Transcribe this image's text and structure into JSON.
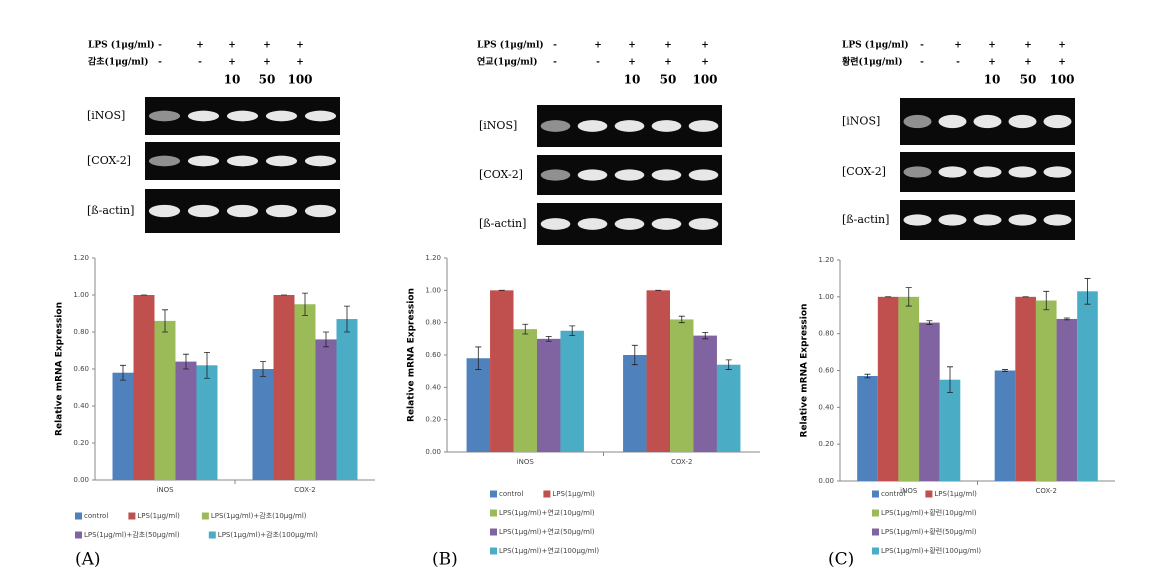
{
  "panel_labels": [
    "(A)",
    "(B)",
    "(C)"
  ],
  "gels": [
    {
      "lps_label": "LPS (1μg/ml)",
      "lps_marks": [
        "-",
        "+",
        "+",
        "+",
        "+"
      ],
      "extract_label": "감초(1μg/ml)",
      "extract_marks": [
        "-",
        "-",
        "+",
        "+",
        "+"
      ],
      "doses": [
        "10",
        "50",
        "100"
      ],
      "bands": [
        "[iNOS]",
        "[COX-2]",
        "[ß-actin]"
      ]
    },
    {
      "lps_label": "LPS (1μg/ml)",
      "lps_marks": [
        "-",
        "+",
        "+",
        "+",
        "+"
      ],
      "extract_label": "연교(1μg/ml)",
      "extract_marks": [
        "-",
        "-",
        "+",
        "+",
        "+"
      ],
      "doses": [
        "10",
        "50",
        "100"
      ],
      "bands": [
        "[iNOS]",
        "[COX-2]",
        "[ß-actin]"
      ]
    },
    {
      "lps_label": "LPS (1μg/ml)",
      "lps_marks": [
        "-",
        "+",
        "+",
        "+",
        "+"
      ],
      "extract_label": "황련(1μg/ml)",
      "extract_marks": [
        "-",
        "-",
        "+",
        "+",
        "+"
      ],
      "doses": [
        "10",
        "50",
        "100"
      ],
      "bands": [
        "[iNOS]",
        "[COX-2]",
        "[ß-actin]"
      ]
    }
  ],
  "chart_data": [
    {
      "type": "bar",
      "y_label": "Relative mRNA Expression",
      "categories": [
        "iNOS",
        "COX-2"
      ],
      "ylim": [
        0,
        1.2
      ],
      "yticks": [
        {
          "value": 0,
          "label": "0.00"
        },
        {
          "value": 0.2,
          "label": "0.20"
        },
        {
          "value": 0.4,
          "label": "0.40"
        },
        {
          "value": 0.6,
          "label": "0.60"
        },
        {
          "value": 0.8,
          "label": "0.80"
        },
        {
          "value": 1,
          "label": "1.00"
        },
        {
          "value": 1.2,
          "label": "1.20"
        }
      ],
      "series": [
        {
          "name": "control",
          "color": "#4f81bd",
          "values": [
            0.58,
            0.6
          ],
          "errors": [
            0.04,
            0.04
          ]
        },
        {
          "name": "LPS(1μg/ml)",
          "color": "#c0504d",
          "values": [
            1.0,
            1.0
          ],
          "errors": [
            0,
            0
          ]
        },
        {
          "name": "LPS(1μg/ml)+감초(10μg/ml)",
          "color": "#9bbb59",
          "values": [
            0.86,
            0.95
          ],
          "errors": [
            0.06,
            0.06
          ]
        },
        {
          "name": "LPS(1μg/ml)+감초(50μg/ml)",
          "color": "#8064a2",
          "values": [
            0.64,
            0.76
          ],
          "errors": [
            0.04,
            0.04
          ]
        },
        {
          "name": "LPS(1μg/ml)+감초(100μg/ml)",
          "color": "#4bacc6",
          "values": [
            0.62,
            0.87
          ],
          "errors": [
            0.07,
            0.07
          ]
        }
      ]
    },
    {
      "type": "bar",
      "y_label": "Relative mRNA Expression",
      "categories": [
        "iNOS",
        "COX-2"
      ],
      "ylim": [
        0,
        1.2
      ],
      "yticks": [
        {
          "value": 0,
          "label": "0.00"
        },
        {
          "value": 0.2,
          "label": "0.20"
        },
        {
          "value": 0.4,
          "label": "0.40"
        },
        {
          "value": 0.6,
          "label": "0.60"
        },
        {
          "value": 0.8,
          "label": "0.80"
        },
        {
          "value": 1,
          "label": "1.00"
        },
        {
          "value": 1.2,
          "label": "1.20"
        }
      ],
      "series": [
        {
          "name": "control",
          "color": "#4f81bd",
          "values": [
            0.58,
            0.6
          ],
          "errors": [
            0.07,
            0.06
          ]
        },
        {
          "name": "LPS(1μg/ml)",
          "color": "#c0504d",
          "values": [
            1.0,
            1.0
          ],
          "errors": [
            0,
            0
          ]
        },
        {
          "name": "LPS(1μg/ml)+연교(10μg/ml)",
          "color": "#9bbb59",
          "values": [
            0.76,
            0.82
          ],
          "errors": [
            0.03,
            0.02
          ]
        },
        {
          "name": "LPS(1μg/ml)+연교(50μg/ml)",
          "color": "#8064a2",
          "values": [
            0.7,
            0.72
          ],
          "errors": [
            0.015,
            0.02
          ]
        },
        {
          "name": "LPS(1μg/ml)+연교(100μg/ml)",
          "color": "#4bacc6",
          "values": [
            0.75,
            0.54
          ],
          "errors": [
            0.03,
            0.03
          ]
        }
      ]
    },
    {
      "type": "bar",
      "y_label": "Relative mRNA Expression",
      "categories": [
        "iNOS",
        "COX-2"
      ],
      "ylim": [
        0,
        1.2
      ],
      "yticks": [
        {
          "value": 0,
          "label": "0.00"
        },
        {
          "value": 0.2,
          "label": "0.20"
        },
        {
          "value": 0.4,
          "label": "0.40"
        },
        {
          "value": 0.6,
          "label": "0.60"
        },
        {
          "value": 0.8,
          "label": "0.80"
        },
        {
          "value": 1,
          "label": "1.00"
        },
        {
          "value": 1.2,
          "label": "1.20"
        }
      ],
      "series": [
        {
          "name": "control",
          "color": "#4f81bd",
          "values": [
            0.57,
            0.6
          ],
          "errors": [
            0.01,
            0.005
          ]
        },
        {
          "name": "LPS(1μg/ml)",
          "color": "#c0504d",
          "values": [
            1.0,
            1.0
          ],
          "errors": [
            0,
            0
          ]
        },
        {
          "name": "LPS(1μg/ml)+황련(10μg/ml)",
          "color": "#9bbb59",
          "values": [
            1.0,
            0.98
          ],
          "errors": [
            0.05,
            0.05
          ]
        },
        {
          "name": "LPS(1μg/ml)+황련(50μg/ml)",
          "color": "#8064a2",
          "values": [
            0.86,
            0.88
          ],
          "errors": [
            0.01,
            0.005
          ]
        },
        {
          "name": "LPS(1μg/ml)+황련(100μg/ml)",
          "color": "#4bacc6",
          "values": [
            0.55,
            1.03
          ],
          "errors": [
            0.07,
            0.07
          ]
        }
      ]
    }
  ]
}
